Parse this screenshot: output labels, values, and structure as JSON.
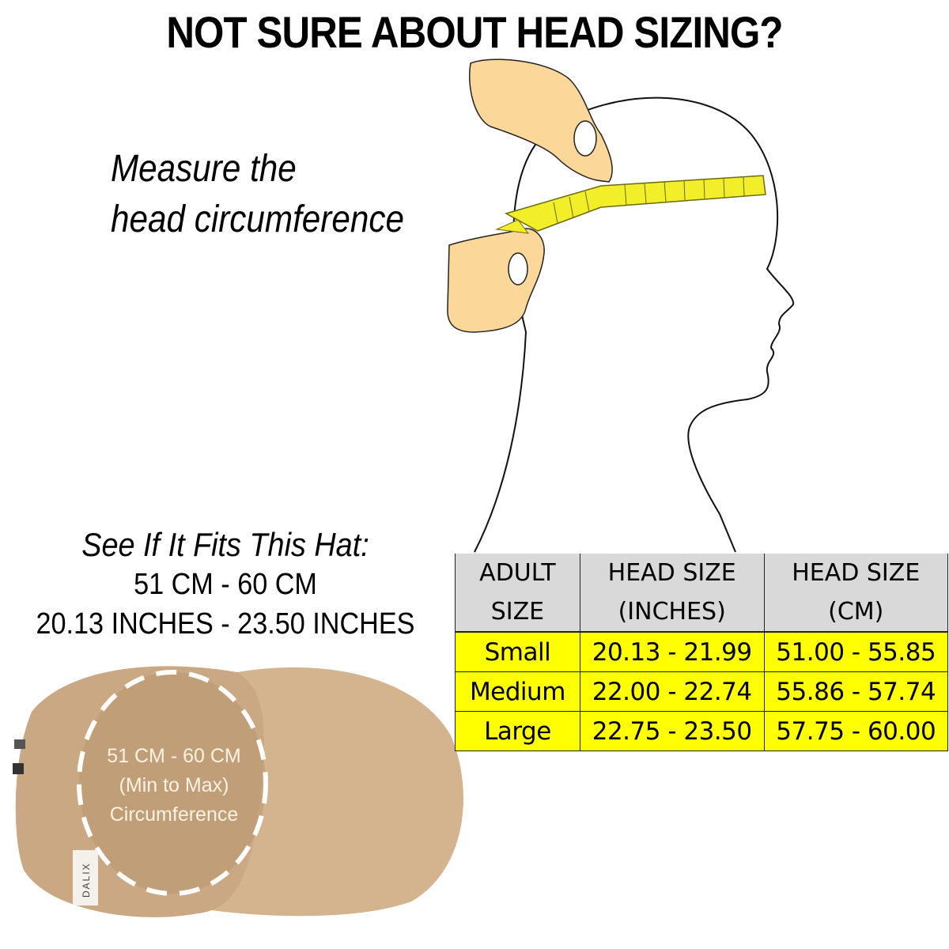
{
  "title": "NOT SURE ABOUT HEAD SIZING?",
  "instruction": {
    "line1": "Measure the",
    "line2": "head circumference"
  },
  "fit": {
    "heading": "See If It Fits This Hat:",
    "cm_range": "51 CM - 60 CM",
    "inch_range": "20.13 INCHES -  23.50 INCHES"
  },
  "hat": {
    "label_line1": "51 CM - 60 CM",
    "label_line2": "(Min to Max)",
    "label_line3": "Circumference",
    "brand_tag": "DALIX",
    "color": "#c9a883"
  },
  "size_table": {
    "headers": [
      [
        "ADULT",
        "SIZE"
      ],
      [
        "HEAD SIZE",
        "(INCHES)"
      ],
      [
        "HEAD SIZE",
        "(CM)"
      ]
    ],
    "rows": [
      [
        "Small",
        "20.13 - 21.99",
        "51.00 - 55.85"
      ],
      [
        "Medium",
        "22.00 - 22.74",
        "55.86 - 57.74"
      ],
      [
        "Large",
        "22.75 - 23.50",
        "57.75 - 60.00"
      ]
    ],
    "header_color": "#d9d9d9",
    "row_color": "#ffff00"
  }
}
